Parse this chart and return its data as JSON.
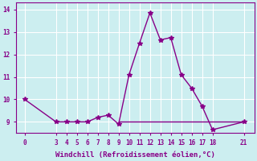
{
  "x": [
    0,
    3,
    4,
    5,
    6,
    7,
    8,
    9,
    10,
    11,
    12,
    13,
    14,
    15,
    16,
    17,
    18,
    21
  ],
  "y": [
    10,
    9,
    9,
    9,
    9,
    9.2,
    9.3,
    8.9,
    11.1,
    12.5,
    13.85,
    12.65,
    12.75,
    11.1,
    10.5,
    9.7,
    8.65,
    9
  ],
  "hline_y": 9,
  "hline_x_start": 9,
  "hline_x_end": 21,
  "xlabel": "Windchill (Refroidissement éolien,°C)",
  "ylim": [
    8.5,
    14.3
  ],
  "xlim": [
    -0.8,
    22
  ],
  "yticks": [
    9,
    10,
    11,
    12,
    13,
    14
  ],
  "xticks": [
    0,
    3,
    4,
    5,
    6,
    7,
    8,
    9,
    10,
    11,
    12,
    13,
    14,
    15,
    16,
    17,
    18,
    21
  ],
  "line_color": "#880088",
  "bg_color": "#cceef0",
  "grid_color": "#ffffff",
  "marker": "*",
  "linewidth": 1.0,
  "markersize": 4,
  "tick_fontsize": 5.5,
  "xlabel_fontsize": 6.5
}
